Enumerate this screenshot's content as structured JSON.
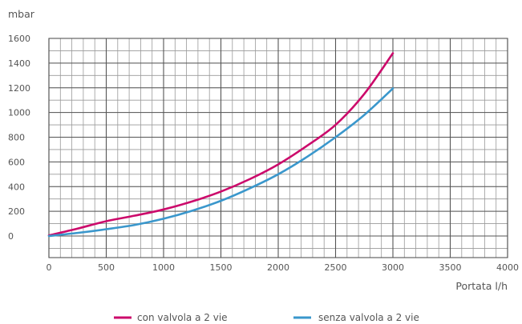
{
  "chart_data": {
    "type": "line",
    "title": "",
    "xlabel": "Portata l/h",
    "ylabel": "mbar",
    "xlim": [
      0,
      4000
    ],
    "ylim": [
      0,
      1600
    ],
    "x_major_ticks": [
      0,
      500,
      1000,
      1500,
      2000,
      2500,
      3000,
      3500,
      4000
    ],
    "x_tick_labels": [
      "0",
      "500",
      "1000",
      "1500",
      "2000",
      "2500",
      "3000",
      "3500",
      "4000"
    ],
    "y_major_ticks": [
      0,
      200,
      400,
      600,
      800,
      1000,
      1200,
      1400,
      1600
    ],
    "y_tick_labels": [
      "0",
      "200",
      "400",
      "600",
      "800",
      "1000",
      "1200",
      "1400",
      "1600"
    ],
    "x_grid_step": 100,
    "y_grid_step": 100,
    "grid": true,
    "legend_position": "bottom",
    "series": [
      {
        "name": "con valvola a 2 vie",
        "color": "#cc0a6b",
        "x": [
          0,
          250,
          500,
          750,
          1000,
          1250,
          1500,
          1750,
          2000,
          2250,
          2500,
          2750,
          3000
        ],
        "y": [
          5,
          60,
          120,
          165,
          215,
          280,
          360,
          460,
          580,
          730,
          900,
          1150,
          1480
        ]
      },
      {
        "name": "senza valvola a 2 vie",
        "color": "#3a97cc",
        "x": [
          0,
          250,
          500,
          750,
          1000,
          1250,
          1500,
          1750,
          2000,
          2250,
          2500,
          2750,
          3000
        ],
        "y": [
          0,
          25,
          55,
          90,
          140,
          205,
          285,
          385,
          500,
          640,
          800,
          980,
          1195
        ]
      }
    ]
  }
}
